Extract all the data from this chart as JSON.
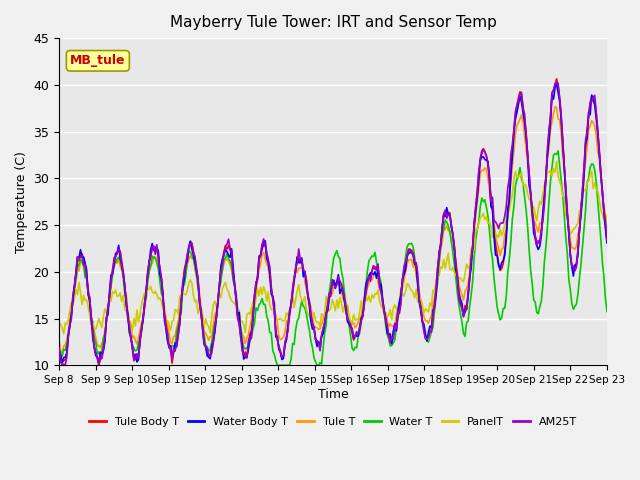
{
  "title": "Mayberry Tule Tower: IRT and Sensor Temp",
  "xlabel": "Time",
  "ylabel": "Temperature (C)",
  "ylim": [
    10,
    45
  ],
  "yticks": [
    10,
    15,
    20,
    25,
    30,
    35,
    40,
    45
  ],
  "xlim_days": [
    0,
    15
  ],
  "start_day": 8,
  "end_day": 23,
  "x_tick_labels": [
    "Sep 8",
    "Sep 9",
    "Sep 10",
    "Sep 11",
    "Sep 12",
    "Sep 13",
    "Sep 14",
    "Sep 15",
    "Sep 16",
    "Sep 17",
    "Sep 18",
    "Sep 19",
    "Sep 20",
    "Sep 21",
    "Sep 22",
    "Sep 23"
  ],
  "annotation_label": "MB_tule",
  "annotation_color": "#cc0000",
  "annotation_bg": "#ffff99",
  "annotation_border": "#999900",
  "series_colors": {
    "tule_body": "#ff0000",
    "water_body": "#0000ff",
    "tule": "#ff9900",
    "water": "#00cc00",
    "panel": "#cccc00",
    "am25t": "#9900cc"
  },
  "legend_labels": [
    "Tule Body T",
    "Water Body T",
    "Tule T",
    "Water T",
    "PanelT",
    "AM25T"
  ],
  "legend_colors": [
    "#ff0000",
    "#0000ff",
    "#ff9900",
    "#00cc00",
    "#cccc00",
    "#9900cc"
  ],
  "background_color": "#e8e8e8",
  "plot_bg": "#f0f0f0",
  "grid_color": "#ffffff",
  "linewidth": 1.2
}
